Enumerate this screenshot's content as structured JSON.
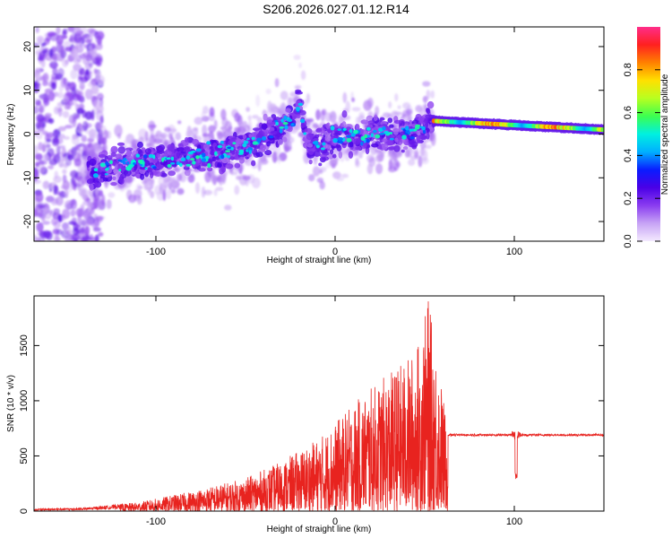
{
  "figure_title": "S206.2026.027.01.12.R14",
  "chart_data": [
    {
      "type": "heatmap",
      "xlabel": "Height of straight line (km)",
      "ylabel": "Frequency (Hz)",
      "xlim": [
        -168,
        150
      ],
      "ylim": [
        -24.5,
        24.5
      ],
      "x_ticks": [
        -100,
        0,
        100
      ],
      "y_ticks": [
        -20,
        -10,
        0,
        10,
        20
      ],
      "colorbar": {
        "label": "Normalized spectral amplitude",
        "range": [
          0,
          1
        ],
        "ticks": [
          "0.0",
          "0.2",
          "0.4",
          "0.6",
          "0.8"
        ],
        "tick_values": [
          0,
          0.2,
          0.4,
          0.6,
          0.8
        ],
        "colors": [
          "#f4eaff",
          "#c7a4f5",
          "#8a3cf0",
          "#4a00e6",
          "#0a1cff",
          "#00b0ff",
          "#00f0e0",
          "#3cff50",
          "#b8ff20",
          "#ffe000",
          "#ff8000",
          "#ff2020",
          "#ff2d8a"
        ]
      },
      "trend": [
        {
          "x": -135,
          "f": -8
        },
        {
          "x": -100,
          "f": -6
        },
        {
          "x": -60,
          "f": -4
        },
        {
          "x": -40,
          "f": -1
        },
        {
          "x": -22,
          "f": 4
        },
        {
          "x": -20,
          "f": 8
        },
        {
          "x": -15,
          "f": -3
        },
        {
          "x": 0,
          "f": -1
        },
        {
          "x": 20,
          "f": 0
        },
        {
          "x": 40,
          "f": 0
        },
        {
          "x": 50,
          "f": 2
        },
        {
          "x": 55,
          "f": 3
        },
        {
          "x": 150,
          "f": 1
        }
      ],
      "strong_band": {
        "x_start": 55,
        "x_end": 150,
        "f_start": 3,
        "f_end": 1,
        "amplitude": 0.9
      }
    },
    {
      "type": "line",
      "xlabel": "Height of straight line (km)",
      "ylabel": "SNR (10 * v/v)",
      "xlim": [
        -168,
        150
      ],
      "ylim": [
        0,
        1950
      ],
      "x_ticks": [
        -100,
        0,
        100
      ],
      "y_ticks": [
        0,
        500,
        1000,
        1500
      ],
      "color": "#e8231f",
      "envelope": [
        {
          "x": -168,
          "y": 20
        },
        {
          "x": -140,
          "y": 30
        },
        {
          "x": -110,
          "y": 80
        },
        {
          "x": -80,
          "y": 180
        },
        {
          "x": -50,
          "y": 300
        },
        {
          "x": -30,
          "y": 450
        },
        {
          "x": -10,
          "y": 650
        },
        {
          "x": 0,
          "y": 800
        },
        {
          "x": 15,
          "y": 1050
        },
        {
          "x": 30,
          "y": 1250
        },
        {
          "x": 45,
          "y": 1450
        },
        {
          "x": 52,
          "y": 1900
        },
        {
          "x": 60,
          "y": 1100
        },
        {
          "x": 63,
          "y": 700
        },
        {
          "x": 150,
          "y": 700
        }
      ],
      "plateau": {
        "x_start": 63,
        "x_end": 150,
        "level": 690
      },
      "dip": {
        "x": 101,
        "level": 280
      }
    }
  ]
}
